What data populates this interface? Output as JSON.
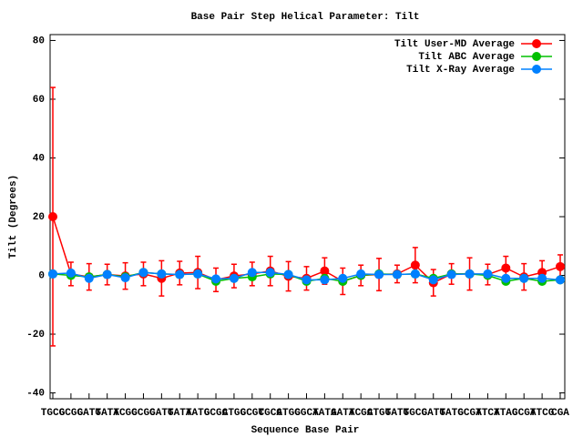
{
  "chart_data": {
    "type": "line",
    "title": "Base Pair Step Helical Parameter: Tilt",
    "xlabel": "Sequence Base Pair",
    "ylabel": "Tilt (Degrees)",
    "categories": [
      "TGCG",
      "GCGC",
      "GATG",
      "TATA",
      "TCGC",
      "GCGC",
      "GATG",
      "TATA",
      "TATG",
      "GCGC",
      "ATGC",
      "GCGT",
      "CGCG",
      "ATGG",
      "CGCA",
      "TATA",
      "GATA",
      "TCGC",
      "ATGG",
      "TATG",
      "TGCG",
      "CATG",
      "TATG",
      "GCGT",
      "ATCT",
      "ATAC",
      "GCGT",
      "ATCG",
      "CGA"
    ],
    "ylim": [
      -42,
      82
    ],
    "yticks": [
      -40,
      -20,
      0,
      20,
      40,
      60,
      80
    ],
    "legend": "top-right",
    "series": [
      {
        "name": "Tilt User-MD Average",
        "color": "#ff0000",
        "values": [
          20,
          0.5,
          -0.5,
          0.3,
          -0.2,
          0.5,
          -1,
          0.8,
          1,
          -1.5,
          -0.2,
          0.5,
          1.5,
          -0.3,
          -1,
          1.5,
          -2,
          0,
          0.3,
          0.5,
          3.5,
          -2.5,
          0.5,
          0.5,
          0.3,
          2.5,
          -0.5,
          1,
          3
        ],
        "errors": [
          44,
          4,
          4.5,
          3.5,
          4.5,
          4,
          6,
          4,
          5.5,
          4,
          4,
          4,
          5,
          5,
          4,
          4.5,
          4.5,
          3.5,
          5.5,
          3,
          6,
          4.5,
          3.5,
          5.5,
          3.5,
          4,
          4.5,
          4,
          4
        ]
      },
      {
        "name": "Tilt ABC Average",
        "color": "#00c000",
        "values": [
          0.5,
          0,
          -0.5,
          0.3,
          -0.5,
          1,
          0.5,
          0.3,
          0.5,
          -2,
          -1,
          -0.5,
          0.5,
          0.3,
          -2,
          -1,
          -2,
          0,
          0.5,
          0.3,
          0.5,
          -1,
          0.5,
          0.5,
          0,
          -2,
          -1,
          -2,
          -1.5
        ]
      },
      {
        "name": "Tilt X-Ray Average",
        "color": "#0080ff",
        "values": [
          0.5,
          0.8,
          -1,
          0.3,
          -0.8,
          1,
          0.5,
          0.3,
          0.5,
          -1.2,
          -1,
          1,
          1,
          0.3,
          -1.5,
          -1.5,
          -1,
          0.5,
          0.3,
          0.3,
          0.5,
          -1.5,
          0.3,
          0.5,
          0.5,
          -1,
          -1,
          -1,
          -1.5
        ]
      }
    ]
  }
}
